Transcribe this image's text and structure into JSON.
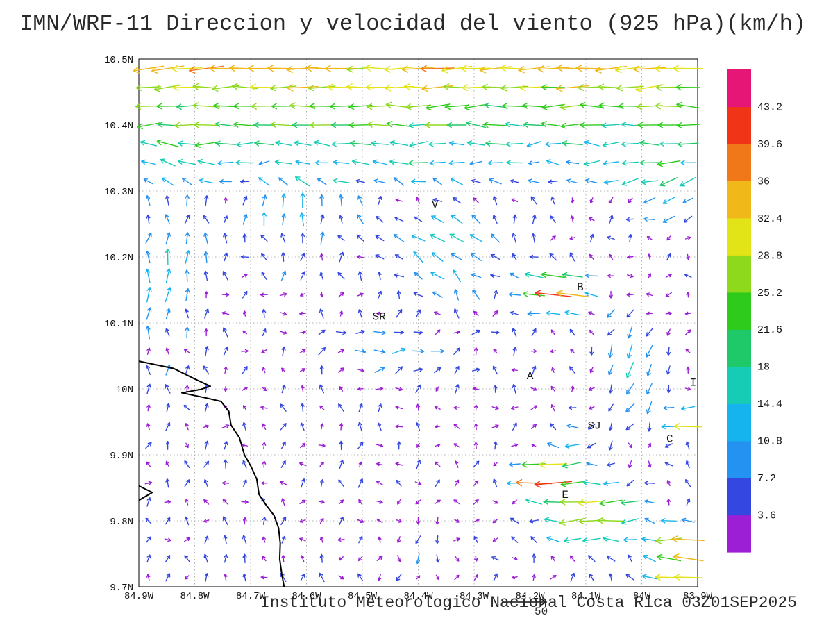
{
  "chart_data": {
    "type": "vector_field",
    "title": "IMN/WRF-11 Direccion y velocidad del viento (925 hPa)(km/h)",
    "footer": "Instituto Meteorologico Nacional Costa Rica 03Z01SEP2025",
    "model": "IMN/WRF-11",
    "variable": "Direccion y velocidad del viento",
    "level": "925 hPa",
    "units": "km/h",
    "valid_time": "03Z01SEP2025",
    "ref_vector": {
      "label": "50",
      "speed": 50
    },
    "axes": {
      "lon_min": -84.9,
      "lon_max": -83.9,
      "lat_min": 9.7,
      "lat_max": 10.5,
      "x_tick_values": [
        -84.9,
        -84.8,
        -84.7,
        -84.6,
        -84.5,
        -84.4,
        -84.3,
        -84.2,
        -84.1,
        -84.0,
        -83.9
      ],
      "x_ticks": [
        "84.9W",
        "84.8W",
        "84.7W",
        "84.6W",
        "84.5W",
        "84.4W",
        "84.3W",
        "84.2W",
        "84.1W",
        "84W",
        "83.9W"
      ],
      "y_tick_values": [
        9.7,
        9.8,
        9.9,
        10.0,
        10.1,
        10.2,
        10.3,
        10.4,
        10.5
      ],
      "y_ticks": [
        "9.7N",
        "9.8N",
        "9.9N",
        "10N",
        "10.1N",
        "10.2N",
        "10.3N",
        "10.4N",
        "10.5N"
      ],
      "grid": "dotted"
    },
    "colorbar": {
      "step": 3.6,
      "tick_labels": [
        "3.6",
        "7.2",
        "10.8",
        "14.4",
        "18",
        "21.6",
        "25.2",
        "28.8",
        "32.4",
        "36",
        "39.6",
        "43.2"
      ],
      "colors": [
        "#9c1fd6",
        "#3447e0",
        "#2492f0",
        "#16b4ee",
        "#17ccb4",
        "#1fc96a",
        "#2ecb1d",
        "#8ed91c",
        "#e3e418",
        "#f0b818",
        "#f07818",
        "#f03418",
        "#e61677"
      ]
    },
    "city_labels": [
      {
        "text": "V",
        "lon": -84.37,
        "lat": 10.28
      },
      {
        "text": "B",
        "lon": -84.11,
        "lat": 10.155
      },
      {
        "text": "SR",
        "lon": -84.47,
        "lat": 10.11
      },
      {
        "text": "A",
        "lon": -84.2,
        "lat": 10.02
      },
      {
        "text": "SJ",
        "lon": -84.085,
        "lat": 9.945
      },
      {
        "text": "C",
        "lon": -83.95,
        "lat": 9.925
      },
      {
        "text": "E",
        "lon": -84.137,
        "lat": 9.84
      },
      {
        "text": "I",
        "lon": -83.908,
        "lat": 10.01
      }
    ],
    "coastline": {
      "main": [
        [
          -84.9,
          10.042
        ],
        [
          -84.838,
          10.031
        ],
        [
          -84.8,
          10.015
        ],
        [
          -84.772,
          10.004
        ],
        [
          -84.79,
          9.999
        ],
        [
          -84.823,
          9.994
        ],
        [
          -84.778,
          9.986
        ],
        [
          -84.753,
          9.981
        ],
        [
          -84.739,
          9.966
        ],
        [
          -84.735,
          9.945
        ],
        [
          -84.72,
          9.926
        ],
        [
          -84.711,
          9.9
        ],
        [
          -84.699,
          9.882
        ],
        [
          -84.689,
          9.863
        ],
        [
          -84.685,
          9.84
        ],
        [
          -84.673,
          9.825
        ],
        [
          -84.658,
          9.808
        ],
        [
          -84.65,
          9.789
        ],
        [
          -84.647,
          9.766
        ],
        [
          -84.648,
          9.742
        ],
        [
          -84.644,
          9.718
        ],
        [
          -84.64,
          9.7
        ]
      ],
      "islet": [
        [
          -84.9,
          9.853
        ],
        [
          -84.876,
          9.843
        ],
        [
          -84.9,
          9.831
        ]
      ]
    },
    "grid": {
      "cols": 29,
      "rows": 28
    },
    "wind_model": {
      "background": {
        "u_jitter": 7,
        "v_mean": 2.5,
        "v_jitter": 7
      },
      "band": {
        "lat0": 10.3,
        "span": 0.2,
        "base": 7,
        "amp": 28
      },
      "features": [
        {
          "name": "fan-northwest-V",
          "lon": -84.36,
          "lat": 10.21,
          "rx": 0.1,
          "ry": 0.07,
          "u": -13,
          "v": 6
        },
        {
          "name": "jet-west-B",
          "lon": -84.15,
          "lat": 10.15,
          "rx": 0.055,
          "ry": 0.035,
          "u": -40,
          "v": 2
        },
        {
          "name": "east-flow-SR",
          "lon": -84.43,
          "lat": 10.06,
          "rx": 0.12,
          "ry": 0.045,
          "u": 11,
          "v": -1
        },
        {
          "name": "south-flow-right",
          "lon": -84.02,
          "lat": 10.02,
          "rx": 0.07,
          "ry": 0.12,
          "u": -5,
          "v": -14
        },
        {
          "name": "southwest-topright",
          "lon": -83.95,
          "lat": 10.3,
          "rx": 0.09,
          "ry": 0.06,
          "u": -10,
          "v": -8
        },
        {
          "name": "north-left-mid",
          "lon": -84.62,
          "lat": 10.26,
          "rx": 0.09,
          "ry": 0.06,
          "u": -2,
          "v": 9
        },
        {
          "name": "coastal-north",
          "lon": -84.86,
          "lat": 10.18,
          "rx": 0.07,
          "ry": 0.12,
          "u": 1,
          "v": 10
        },
        {
          "name": "gap-wind-E",
          "lon": -84.09,
          "lat": 9.81,
          "rx": 0.09,
          "ry": 0.05,
          "u": -30,
          "v": -5
        },
        {
          "name": "jet-west-SJ",
          "lon": -84.18,
          "lat": 9.865,
          "rx": 0.045,
          "ry": 0.025,
          "u": -40,
          "v": -2
        },
        {
          "name": "green-west-SJ",
          "lon": -84.13,
          "lat": 9.9,
          "rx": 0.05,
          "ry": 0.04,
          "u": -14,
          "v": -4
        },
        {
          "name": "streak-right-1",
          "lon": -83.9,
          "lat": 9.95,
          "rx": 0.045,
          "ry": 0.025,
          "u": -34,
          "v": 0
        },
        {
          "name": "streak-right-2",
          "lon": -83.92,
          "lat": 9.77,
          "rx": 0.05,
          "ry": 0.03,
          "u": -34,
          "v": -4
        },
        {
          "name": "west-bottomright",
          "lon": -83.93,
          "lat": 9.72,
          "rx": 0.06,
          "ry": 0.03,
          "u": -34,
          "v": 2
        },
        {
          "name": "south-col-center",
          "lon": -84.4,
          "lat": 9.76,
          "rx": 0.08,
          "ry": 0.06,
          "u": 0,
          "v": -8
        }
      ]
    }
  }
}
